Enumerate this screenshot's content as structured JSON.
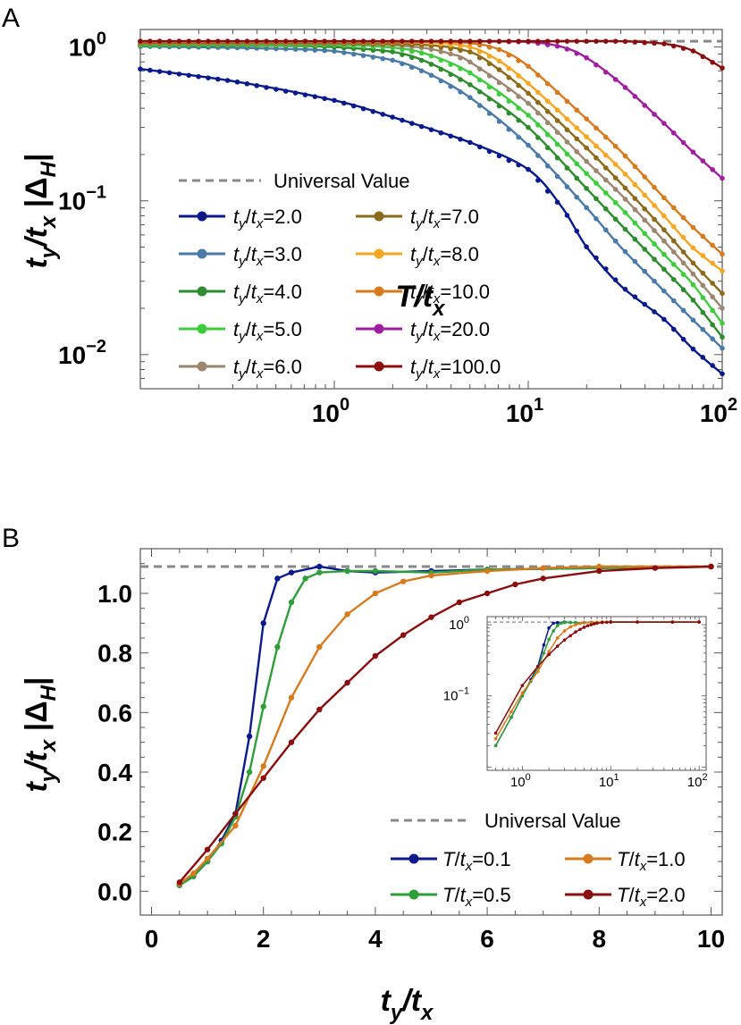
{
  "panels": [
    "A",
    "B"
  ],
  "chart_data": [
    {
      "type": "line",
      "panel": "A",
      "xscale": "log",
      "yscale": "log",
      "xlabel": "T/t_x",
      "ylabel": "t_y/t_x |Δ_H|",
      "xlim": [
        0.1,
        100
      ],
      "ylim": [
        0.006,
        1.3
      ],
      "xticks": [
        {
          "v": 1,
          "base": "10",
          "exp": "0"
        },
        {
          "v": 10,
          "base": "10",
          "exp": "1"
        },
        {
          "v": 100,
          "base": "10",
          "exp": "2"
        }
      ],
      "yticks": [
        {
          "v": 0.01,
          "base": "10",
          "exp": "−2"
        },
        {
          "v": 0.1,
          "base": "10",
          "exp": "−1"
        },
        {
          "v": 1,
          "base": "10",
          "exp": "0"
        }
      ],
      "universal_value": 1.09,
      "legend_universal": "Universal Value",
      "legend_position": "bottom-left",
      "series": [
        {
          "name": "t_y/t_x=2.0",
          "ratio": "2.0",
          "color": "#0a1a8e",
          "x": [
            0.1,
            0.3,
            1,
            2,
            5,
            10,
            15,
            20,
            30,
            50,
            70,
            100
          ],
          "y": [
            0.72,
            0.6,
            0.45,
            0.35,
            0.24,
            0.16,
            0.09,
            0.05,
            0.028,
            0.017,
            0.011,
            0.0075
          ]
        },
        {
          "name": "t_y/t_x=3.0",
          "ratio": "3.0",
          "color": "#4a7aa8",
          "x": [
            0.1,
            0.3,
            0.6,
            1,
            2,
            3,
            5,
            10,
            20,
            30,
            50,
            70,
            100
          ],
          "y": [
            1.01,
            0.99,
            0.97,
            0.94,
            0.82,
            0.68,
            0.47,
            0.23,
            0.09,
            0.05,
            0.026,
            0.017,
            0.011
          ]
        },
        {
          "name": "t_y/t_x=4.0",
          "ratio": "4.0",
          "color": "#2e8b2e",
          "x": [
            0.1,
            0.5,
            1,
            2,
            3,
            5,
            10,
            20,
            30,
            50,
            70,
            100
          ],
          "y": [
            1.02,
            1.02,
            1.0,
            0.93,
            0.8,
            0.57,
            0.3,
            0.12,
            0.07,
            0.036,
            0.023,
            0.013
          ]
        },
        {
          "name": "t_y/t_x=5.0",
          "ratio": "5.0",
          "color": "#3ecb3e",
          "x": [
            0.1,
            1,
            2,
            3,
            5,
            10,
            20,
            30,
            50,
            70,
            100
          ],
          "y": [
            1.03,
            1.03,
            0.99,
            0.9,
            0.68,
            0.36,
            0.15,
            0.09,
            0.045,
            0.029,
            0.016
          ]
        },
        {
          "name": "t_y/t_x=6.0",
          "ratio": "6.0",
          "color": "#9b8670",
          "x": [
            0.1,
            1,
            2,
            3,
            4,
            5,
            10,
            20,
            30,
            50,
            70,
            100
          ],
          "y": [
            1.05,
            1.05,
            1.03,
            0.98,
            0.9,
            0.8,
            0.43,
            0.18,
            0.11,
            0.055,
            0.034,
            0.02
          ]
        },
        {
          "name": "t_y/t_x=7.0",
          "ratio": "7.0",
          "color": "#8b6a1a",
          "x": [
            0.1,
            1,
            3,
            5,
            7,
            10,
            20,
            30,
            50,
            70,
            100
          ],
          "y": [
            1.06,
            1.06,
            1.03,
            0.93,
            0.72,
            0.5,
            0.22,
            0.13,
            0.065,
            0.04,
            0.025
          ]
        },
        {
          "name": "t_y/t_x=8.0",
          "ratio": "8.0",
          "color": "#f5a623",
          "x": [
            0.1,
            1,
            3,
            5,
            7,
            10,
            20,
            30,
            50,
            70,
            100
          ],
          "y": [
            1.08,
            1.08,
            1.07,
            1.0,
            0.82,
            0.58,
            0.26,
            0.16,
            0.08,
            0.05,
            0.035
          ]
        },
        {
          "name": "t_y/t_x=10.0",
          "ratio": "10.0",
          "color": "#d77a1e",
          "x": [
            0.1,
            1,
            3,
            5,
            7,
            10,
            20,
            30,
            50,
            70,
            100
          ],
          "y": [
            1.09,
            1.09,
            1.09,
            1.06,
            0.97,
            0.75,
            0.34,
            0.21,
            0.105,
            0.068,
            0.045
          ]
        },
        {
          "name": "t_y/t_x=20.0",
          "ratio": "20.0",
          "color": "#a01ea0",
          "x": [
            0.1,
            1,
            5,
            10,
            15,
            20,
            30,
            50,
            70,
            100
          ],
          "y": [
            1.09,
            1.09,
            1.09,
            1.08,
            1.0,
            0.85,
            0.58,
            0.32,
            0.21,
            0.14
          ]
        },
        {
          "name": "t_y/t_x=100.0",
          "ratio": "100.0",
          "color": "#8b0e0e",
          "x": [
            0.1,
            1,
            10,
            30,
            50,
            70,
            100
          ],
          "y": [
            1.09,
            1.09,
            1.09,
            1.09,
            1.05,
            0.95,
            0.73
          ]
        }
      ]
    },
    {
      "type": "line",
      "panel": "B",
      "xscale": "linear",
      "yscale": "linear",
      "xlabel": "t_y/t_x",
      "ylabel": "t_y/t_x |Δ_H|",
      "xlim": [
        -0.2,
        10.2
      ],
      "ylim": [
        -0.08,
        1.15
      ],
      "xticks": [
        "0",
        "2",
        "4",
        "6",
        "8",
        "10"
      ],
      "yticks": [
        "0.0",
        "0.2",
        "0.4",
        "0.6",
        "0.8",
        "1.0"
      ],
      "universal_value": 1.09,
      "legend_universal": "Universal Value",
      "legend_position": "bottom-right",
      "series": [
        {
          "name": "T/t_x=0.1",
          "value": "0.1",
          "color": "#0a1a8e",
          "x": [
            0.5,
            0.75,
            1.0,
            1.25,
            1.5,
            1.75,
            2.0,
            2.25,
            2.5,
            3.0,
            3.5,
            4.0,
            5.0,
            6.0,
            8.0,
            10.0
          ],
          "y": [
            0.02,
            0.05,
            0.1,
            0.17,
            0.26,
            0.52,
            0.9,
            1.05,
            1.07,
            1.09,
            1.075,
            1.07,
            1.075,
            1.08,
            1.085,
            1.09
          ]
        },
        {
          "name": "T/t_x=0.5",
          "value": "0.5",
          "color": "#2e9e3a",
          "x": [
            0.5,
            0.75,
            1.0,
            1.25,
            1.5,
            1.75,
            2.0,
            2.25,
            2.5,
            2.75,
            3.0,
            3.5,
            4.0,
            5.0,
            6.0,
            8.0,
            10.0
          ],
          "y": [
            0.02,
            0.05,
            0.1,
            0.16,
            0.25,
            0.4,
            0.62,
            0.82,
            0.97,
            1.05,
            1.07,
            1.075,
            1.075,
            1.07,
            1.08,
            1.085,
            1.09
          ]
        },
        {
          "name": "T/t_x=1.0",
          "value": "1.0",
          "color": "#d77a1e",
          "x": [
            0.5,
            0.75,
            1.0,
            1.5,
            2.0,
            2.5,
            3.0,
            3.5,
            4.0,
            4.5,
            5.0,
            6.0,
            7.0,
            8.0,
            10.0
          ],
          "y": [
            0.025,
            0.06,
            0.11,
            0.22,
            0.42,
            0.65,
            0.82,
            0.93,
            1.0,
            1.04,
            1.06,
            1.075,
            1.085,
            1.09,
            1.09
          ]
        },
        {
          "name": "T/t_x=2.0",
          "value": "2.0",
          "color": "#8b0e0e",
          "x": [
            0.5,
            1.0,
            1.5,
            2.0,
            2.5,
            3.0,
            3.5,
            4.0,
            4.5,
            5.0,
            5.5,
            6.0,
            6.5,
            7.0,
            8.0,
            9.0,
            10.0
          ],
          "y": [
            0.03,
            0.14,
            0.26,
            0.38,
            0.5,
            0.61,
            0.7,
            0.79,
            0.86,
            0.92,
            0.97,
            1.0,
            1.03,
            1.05,
            1.075,
            1.085,
            1.09
          ]
        }
      ]
    }
  ],
  "inset": {
    "xscale": "log",
    "yscale": "log",
    "xlim": [
      0.4,
      120
    ],
    "ylim": [
      0.009,
      1.3
    ],
    "xticks": [
      {
        "v": 1,
        "base": "10",
        "exp": "0"
      },
      {
        "v": 10,
        "base": "10",
        "exp": "1"
      },
      {
        "v": 100,
        "base": "10",
        "exp": "2"
      }
    ],
    "yticks": [
      {
        "v": 0.1,
        "base": "10",
        "exp": "−1"
      },
      {
        "v": 1,
        "base": "10",
        "exp": "0"
      }
    ]
  }
}
